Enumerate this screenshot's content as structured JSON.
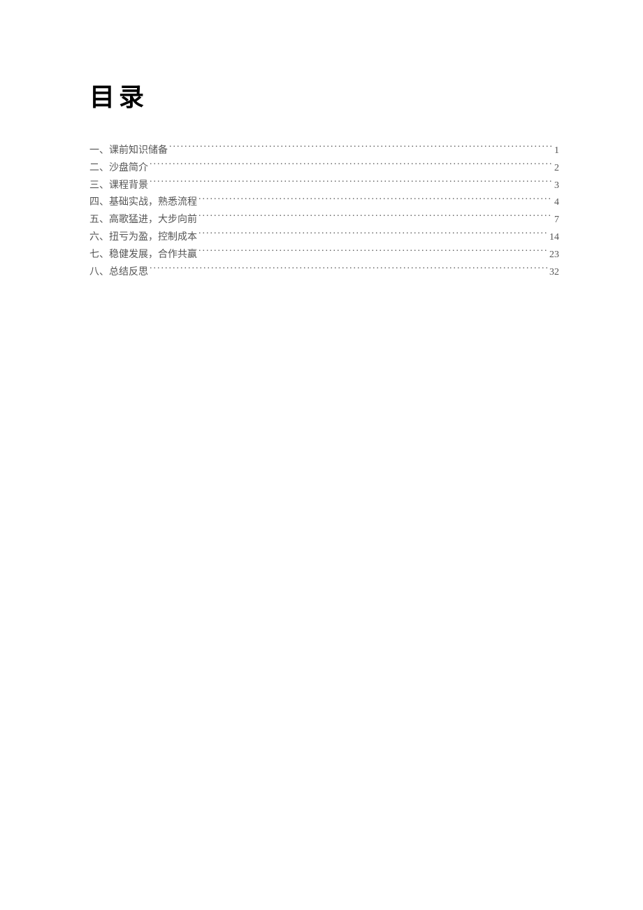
{
  "title": "目录",
  "title_fontsize": 36,
  "title_color": "#000000",
  "entry_fontsize": 14,
  "entry_color": "#555555",
  "background_color": "#ffffff",
  "toc": [
    {
      "label": "一、课前知识储备",
      "page": "1"
    },
    {
      "label": "二、沙盘简介",
      "page": "2"
    },
    {
      "label": "三、课程背景",
      "page": "3"
    },
    {
      "label": "四、基础实战，熟悉流程",
      "page": "4"
    },
    {
      "label": "五、高歌猛进，大步向前",
      "page": "7"
    },
    {
      "label": "六、扭亏为盈，控制成本",
      "page": "14"
    },
    {
      "label": "七、稳健发展，合作共赢",
      "page": "23"
    },
    {
      "label": "八、总结反思",
      "page": "32"
    }
  ]
}
